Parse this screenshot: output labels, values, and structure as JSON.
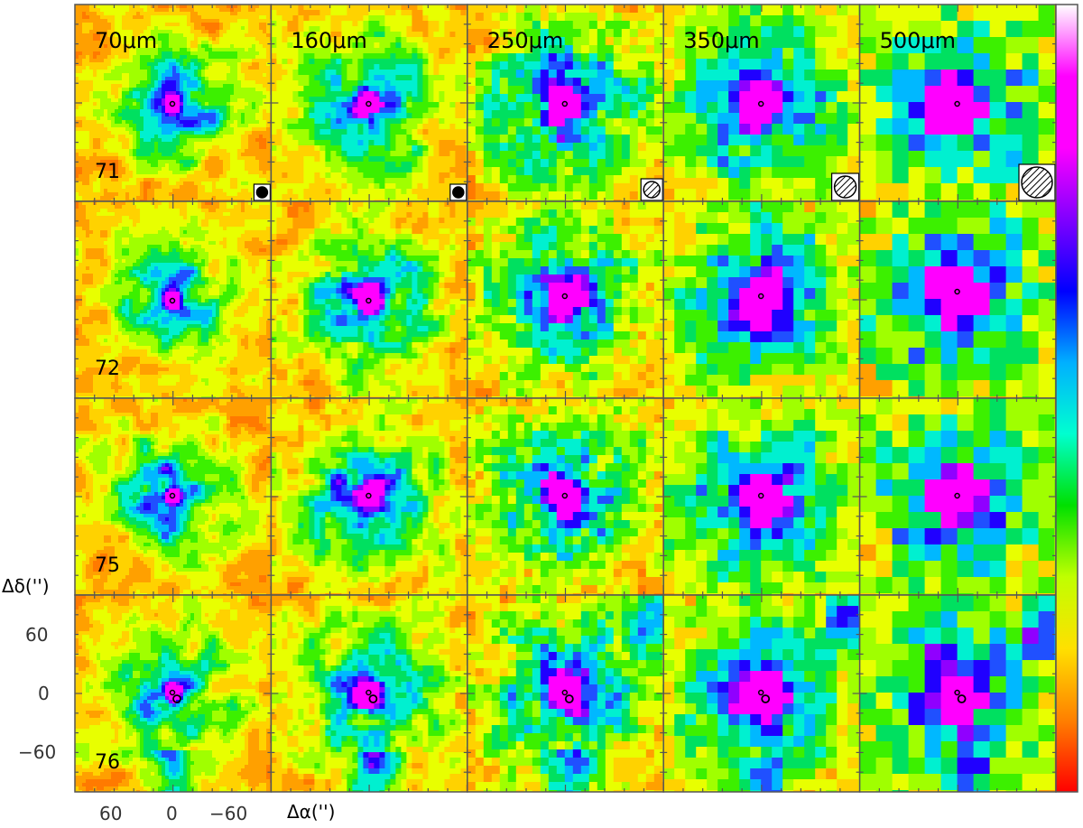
{
  "figure": {
    "wavelength_labels": [
      "70μm",
      "160μm",
      "250μm",
      "350μm",
      "500μm"
    ],
    "source_ids": [
      "71",
      "72",
      "75",
      "76"
    ],
    "y_axis_label": "Δδ('')",
    "x_axis_label": "Δα('')",
    "y_tick_labels": [
      "60",
      "0",
      "−60"
    ],
    "x_tick_labels": [
      "60",
      "0",
      "−60"
    ],
    "beam_style": [
      "solid",
      "solid",
      "hatched",
      "hatched",
      "hatched"
    ]
  },
  "panels": [
    {
      "source": "71",
      "wavelength": "70μm",
      "core_level": 0.95,
      "halo": "blue-cyan, extended to upper-left"
    },
    {
      "source": "71",
      "wavelength": "160μm",
      "core_level": 0.95,
      "halo": "green"
    },
    {
      "source": "71",
      "wavelength": "250μm",
      "core_level": 0.95,
      "halo": "green"
    },
    {
      "source": "71",
      "wavelength": "350μm",
      "core_level": 0.95,
      "halo": "green"
    },
    {
      "source": "71",
      "wavelength": "500μm",
      "core_level": 0.95,
      "halo": "cyan-green"
    },
    {
      "source": "72",
      "wavelength": "70μm",
      "core_level": 0.95,
      "halo": "cyan-green"
    },
    {
      "source": "72",
      "wavelength": "160μm",
      "core_level": 0.95,
      "halo": "green"
    },
    {
      "source": "72",
      "wavelength": "250μm",
      "core_level": 0.95,
      "halo": "green"
    },
    {
      "source": "72",
      "wavelength": "350μm",
      "core_level": 0.95,
      "halo": "green"
    },
    {
      "source": "72",
      "wavelength": "500μm",
      "core_level": 0.95,
      "halo": "green"
    },
    {
      "source": "75",
      "wavelength": "70μm",
      "core_level": 0.95,
      "halo": "compact"
    },
    {
      "source": "75",
      "wavelength": "160μm",
      "core_level": 0.95,
      "halo": "compact"
    },
    {
      "source": "75",
      "wavelength": "250μm",
      "core_level": 0.95,
      "halo": "compact"
    },
    {
      "source": "75",
      "wavelength": "350μm",
      "core_level": 0.95,
      "halo": "green"
    },
    {
      "source": "75",
      "wavelength": "500μm",
      "core_level": 0.95,
      "halo": "green"
    },
    {
      "source": "76",
      "wavelength": "70μm",
      "core_level": 0.95,
      "halo": "green"
    },
    {
      "source": "76",
      "wavelength": "160μm",
      "core_level": 0.95,
      "halo": "green"
    },
    {
      "source": "76",
      "wavelength": "250μm",
      "core_level": 0.95,
      "halo": "green"
    },
    {
      "source": "76",
      "wavelength": "350μm",
      "core_level": 0.95,
      "halo": "green"
    },
    {
      "source": "76",
      "wavelength": "500μm",
      "core_level": 0.95,
      "halo": "green"
    }
  ],
  "colorbar": {
    "colors": [
      "#ff0000",
      "#ff8000",
      "#ffe000",
      "#c0ff00",
      "#00e000",
      "#00ffd0",
      "#00b0ff",
      "#0000ff",
      "#8000ff",
      "#ff00ff",
      "#ff00ff",
      "#ffffff"
    ]
  }
}
